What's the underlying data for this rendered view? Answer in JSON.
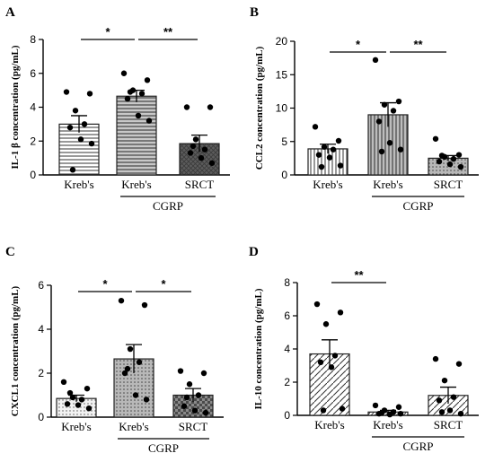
{
  "chart_data": [
    {
      "type": "bar",
      "panel": "A",
      "ylabel": "IL-1 β concentration (pg/mL)",
      "categories": [
        "Kreb's",
        "Kreb's",
        "SRCT"
      ],
      "group_label": "CGRP",
      "ylim": [
        0,
        8
      ],
      "yticks": [
        0,
        2,
        4,
        6,
        8
      ],
      "values": [
        3.0,
        4.65,
        1.85
      ],
      "errors": [
        0.5,
        0.35,
        0.5
      ],
      "points": [
        [
          4.9,
          4.8,
          3.8,
          3.0,
          2.8,
          2.1,
          1.85,
          0.3
        ],
        [
          6.0,
          5.6,
          5.0,
          4.8,
          4.5,
          3.5,
          3.2,
          4.9
        ],
        [
          4.0,
          4.0,
          2.1,
          1.5,
          1.3,
          1.0,
          0.7,
          1.7
        ]
      ],
      "significance": [
        {
          "from": 0,
          "to": 1,
          "label": "*"
        },
        {
          "from": 1,
          "to": 2,
          "label": "**"
        }
      ]
    },
    {
      "type": "bar",
      "panel": "B",
      "ylabel": "CCL2 concentration (pg/mL)",
      "categories": [
        "Kreb's",
        "Kreb's",
        "SRCT"
      ],
      "group_label": "CGRP",
      "ylim": [
        0,
        20
      ],
      "yticks": [
        0,
        5,
        10,
        15,
        20
      ],
      "values": [
        3.9,
        9.0,
        2.5
      ],
      "errors": [
        0.7,
        1.8,
        0.4
      ],
      "points": [
        [
          7.2,
          5.1,
          4.2,
          3.8,
          3.0,
          2.6,
          1.4,
          1.2
        ],
        [
          17.2,
          11.0,
          10.5,
          9.6,
          8.0,
          4.8,
          3.8,
          3.5
        ],
        [
          5.4,
          3.0,
          2.7,
          2.4,
          2.0,
          1.6,
          1.2,
          2.9
        ]
      ],
      "significance": [
        {
          "from": 0,
          "to": 1,
          "label": "*"
        },
        {
          "from": 1,
          "to": 2,
          "label": "**"
        }
      ]
    },
    {
      "type": "bar",
      "panel": "C",
      "ylabel": "CXCL1 concentration (pg/mL)",
      "categories": [
        "Kreb's",
        "Kreb's",
        "SRCT"
      ],
      "group_label": "CGRP",
      "ylim": [
        0,
        6
      ],
      "yticks": [
        0,
        2,
        4,
        6
      ],
      "values": [
        0.85,
        2.65,
        1.0
      ],
      "errors": [
        0.15,
        0.65,
        0.3
      ],
      "points": [
        [
          1.6,
          1.3,
          0.9,
          0.8,
          0.6,
          0.55,
          0.4,
          1.1
        ],
        [
          5.3,
          5.1,
          3.1,
          2.5,
          2.0,
          1.0,
          0.8,
          2.2
        ],
        [
          2.1,
          2.0,
          1.5,
          1.0,
          0.5,
          0.3,
          0.2,
          0.9
        ]
      ],
      "significance": [
        {
          "from": 0,
          "to": 1,
          "label": "*"
        },
        {
          "from": 1,
          "to": 2,
          "label": "*"
        }
      ]
    },
    {
      "type": "bar",
      "panel": "D",
      "ylabel": "IL-10 concentration (pg/mL)",
      "categories": [
        "Kreb's",
        "Kreb's",
        "SRCT"
      ],
      "group_label": "CGRP",
      "ylim": [
        0,
        8
      ],
      "yticks": [
        0,
        2,
        4,
        6,
        8
      ],
      "values": [
        3.7,
        0.2,
        1.2
      ],
      "errors": [
        0.85,
        0.1,
        0.5
      ],
      "points": [
        [
          6.7,
          6.2,
          5.5,
          3.6,
          3.2,
          2.9,
          0.4,
          0.3
        ],
        [
          0.6,
          0.5,
          0.3,
          0.2,
          0.1,
          0.05,
          0.1,
          0.15
        ],
        [
          3.4,
          3.1,
          2.1,
          1.1,
          0.9,
          0.3,
          0.1,
          0.2
        ]
      ],
      "significance": [
        {
          "from": 0,
          "to": 1,
          "label": "**"
        }
      ]
    }
  ]
}
